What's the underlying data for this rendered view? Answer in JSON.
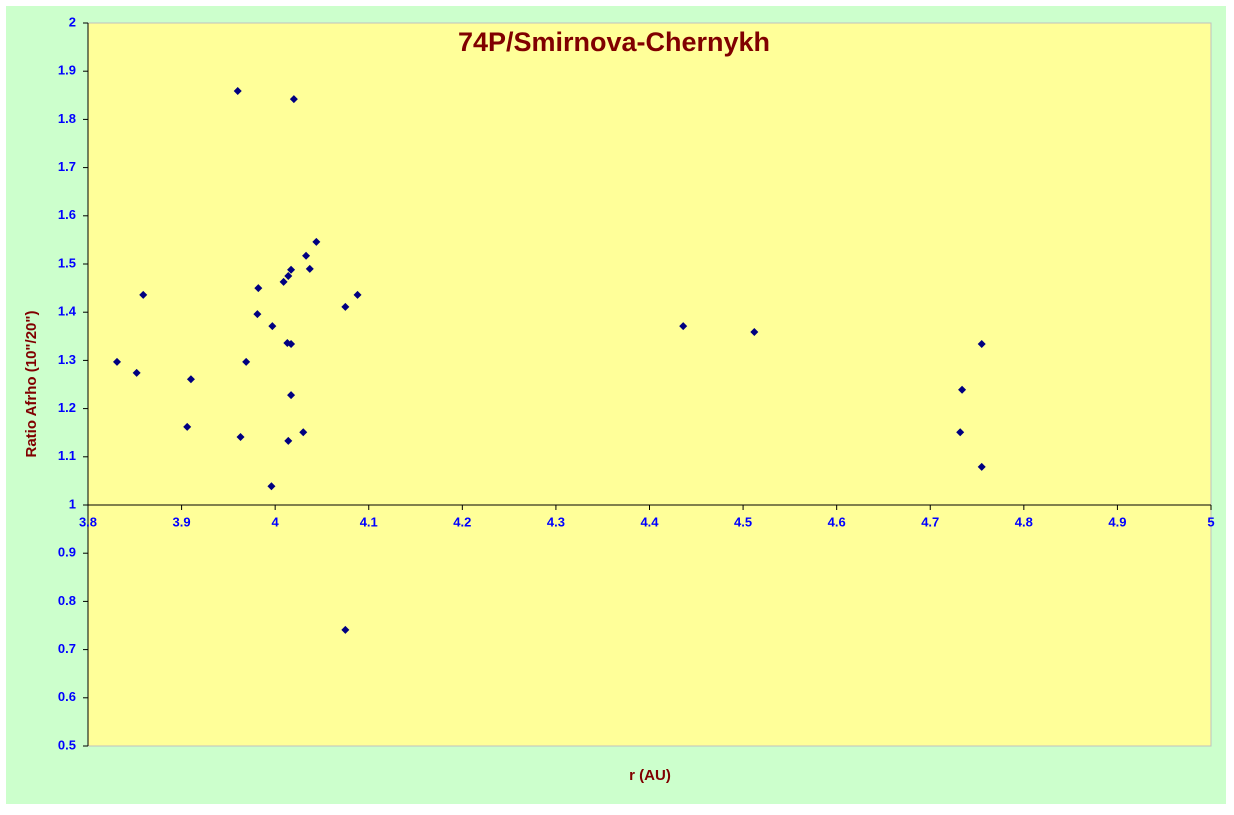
{
  "chart_data": {
    "type": "scatter",
    "title": "74P/Smirnova-Chernykh",
    "x_label": "r (AU)",
    "y_label": "Ratio Afrho (10\"/20\")",
    "x": [
      3.831,
      3.852,
      3.859,
      3.906,
      3.91,
      3.96,
      3.963,
      3.969,
      3.981,
      3.982,
      3.996,
      3.997,
      4.009,
      4.013,
      4.014,
      4.014,
      4.017,
      4.017,
      4.017,
      4.02,
      4.03,
      4.033,
      4.037,
      4.044,
      4.075,
      4.075,
      4.088,
      4.436,
      4.512,
      4.732,
      4.734,
      4.755,
      4.755
    ],
    "values": [
      1.297,
      1.274,
      1.436,
      1.162,
      1.261,
      1.859,
      1.141,
      1.297,
      1.396,
      1.45,
      1.039,
      1.371,
      1.463,
      1.336,
      1.133,
      1.475,
      1.488,
      1.334,
      1.228,
      1.842,
      1.151,
      1.517,
      1.49,
      1.546,
      1.411,
      0.741,
      1.436,
      1.371,
      1.359,
      1.151,
      1.239,
      1.079,
      1.334
    ],
    "color": "#000080",
    "xlim": [
      3.8,
      5
    ],
    "xticks": [
      3.8,
      3.9,
      4,
      4.1,
      4.2,
      4.3,
      4.4,
      4.5,
      4.6,
      4.7,
      4.8,
      4.9,
      5
    ],
    "ylim": [
      0.5,
      2
    ],
    "yticks": [
      0.5,
      0.6,
      0.7,
      0.8,
      0.9,
      1,
      1.1,
      1.2,
      1.3,
      1.4,
      1.5,
      1.6,
      1.7,
      1.8,
      1.9,
      2
    ],
    "x_axis_at": 1
  }
}
